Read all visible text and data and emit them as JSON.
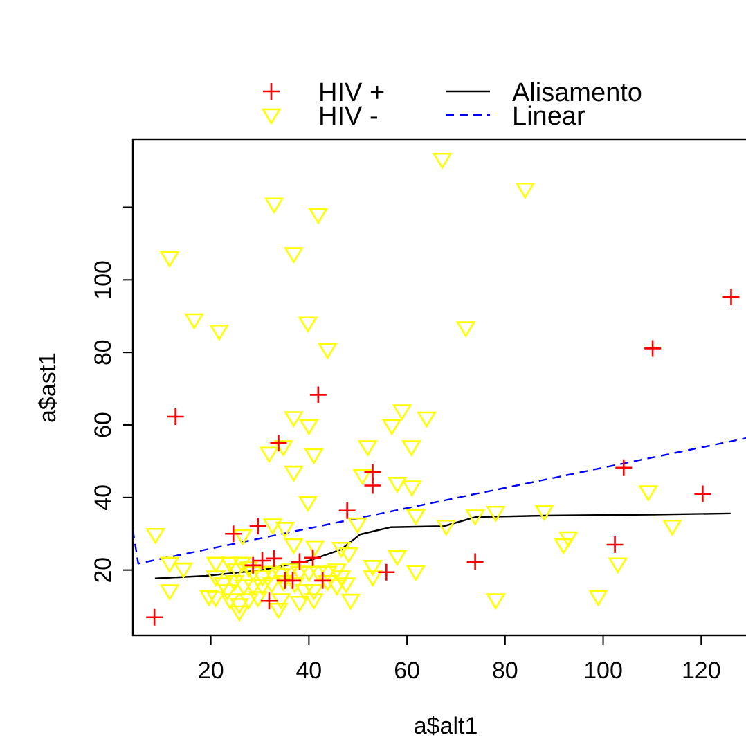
{
  "chart_data": {
    "type": "scatter",
    "xlabel": "a$alt1",
    "ylabel": "a$ast1",
    "xlim": [
      4.1,
      129.7
    ],
    "ylim": [
      2,
      138.6
    ],
    "xticks": [
      20,
      40,
      60,
      80,
      100,
      120
    ],
    "yticks": [
      20,
      40,
      60,
      80,
      100,
      {
        "value": 120,
        "label": null
      }
    ],
    "grid": false,
    "legend": "top",
    "series": [
      {
        "name": "HIV +",
        "marker": "cross",
        "color": "#ff0000",
        "x": [
          12.8,
          41.9,
          33.8,
          53,
          53,
          47.8,
          29.6,
          24.6,
          8.5,
          55.8,
          31.9,
          28.6,
          30.5,
          32.9,
          38.1,
          40.8,
          35.1,
          36.7,
          42.8,
          104.2,
          120.3,
          102.4,
          73.9,
          126.1,
          110.1
        ],
        "values": [
          62.3,
          68.3,
          55,
          47,
          43.3,
          36.4,
          32.1,
          30,
          7,
          19.4,
          11.5,
          21.3,
          22.6,
          23.2,
          22.3,
          23.4,
          17.1,
          17.1,
          17.1,
          48.2,
          41,
          27,
          22.3,
          95.3,
          81.1
        ]
      },
      {
        "name": "HIV -",
        "marker": "triangle",
        "color": "#ffff00",
        "x": [
          32.9,
          41.9,
          11.6,
          36.9,
          16.6,
          21.7,
          39.8,
          43.8,
          67.2,
          84.1,
          72,
          59,
          56.9,
          64,
          36.9,
          40,
          31.9,
          34.8,
          41,
          52,
          60.9,
          36.9,
          50.9,
          58,
          61,
          39.8,
          61.8,
          49.9,
          8.7,
          32.6,
          35.1,
          26.5,
          36.9,
          41.2,
          46.6,
          48.1,
          11.6,
          14.4,
          21,
          58,
          53,
          53,
          61.8,
          11.6,
          19.6,
          48.5,
          23.9,
          26.3,
          27.7,
          25.3,
          28.6,
          30.5,
          32.4,
          34.3,
          36.2,
          38.1,
          40,
          41.9,
          43.8,
          45.7,
          46.6,
          21,
          22.5,
          24.8,
          26.7,
          28.6,
          30.5,
          32.4,
          34.8,
          37.1,
          39.1,
          41,
          43.8,
          45.7,
          47.6,
          23.9,
          25.8,
          25.8,
          27.7,
          29.6,
          33.8,
          34.3,
          38.1,
          41,
          21,
          23.4,
          68,
          73.9,
          78.1,
          78.1,
          88,
          91.9,
          92.9,
          99,
          103,
          109.2,
          114.1
        ],
        "values": [
          120.9,
          118,
          106.1,
          107.2,
          89,
          85.9,
          88.1,
          80.8,
          133.2,
          125,
          86.8,
          63.9,
          59.8,
          61.9,
          62,
          59.8,
          52.2,
          54,
          51.8,
          54,
          54,
          47,
          46.1,
          43.9,
          42.9,
          38.7,
          35,
          32.7,
          29.8,
          32.4,
          31.5,
          29.5,
          27,
          26.4,
          26,
          24.5,
          21.9,
          20.3,
          21.9,
          23.8,
          21,
          18.1,
          19.6,
          14.3,
          12.7,
          11.7,
          21.9,
          21.9,
          20.6,
          20,
          19.4,
          18.1,
          19.4,
          18.7,
          20,
          19.4,
          19.4,
          19.4,
          19.4,
          20,
          18.1,
          18.1,
          16.2,
          16.8,
          15.6,
          15.6,
          15.6,
          16.2,
          16.8,
          16.2,
          14.3,
          14.3,
          16.8,
          15.6,
          16.2,
          11.8,
          10.5,
          8.5,
          11.8,
          12.4,
          9.2,
          11.8,
          11.1,
          11.8,
          12.4,
          14.3,
          32.1,
          34.9,
          35.9,
          11.8,
          36.2,
          27,
          28.9,
          12.7,
          21.7,
          41.6,
          32.1
        ]
      },
      {
        "name": "Alisamento",
        "type": "line",
        "marker": "none",
        "line_style": "solid",
        "color": "#000000",
        "x": [
          8.6,
          19,
          30.5,
          40,
          46.6,
          50.4,
          56.6,
          67.5,
          74,
          88,
          110,
          126
        ],
        "values": [
          17.7,
          18.4,
          20,
          22.6,
          25.7,
          29.8,
          31.8,
          32.1,
          34.6,
          35,
          35.3,
          35.6
        ]
      },
      {
        "name": "Linear",
        "type": "line",
        "marker": "none",
        "line_style": "dashed",
        "color": "#0000ff",
        "x": [
          4.1,
          5.2,
          129.7
        ],
        "values": [
          31,
          21.8,
          56.5
        ]
      }
    ]
  }
}
